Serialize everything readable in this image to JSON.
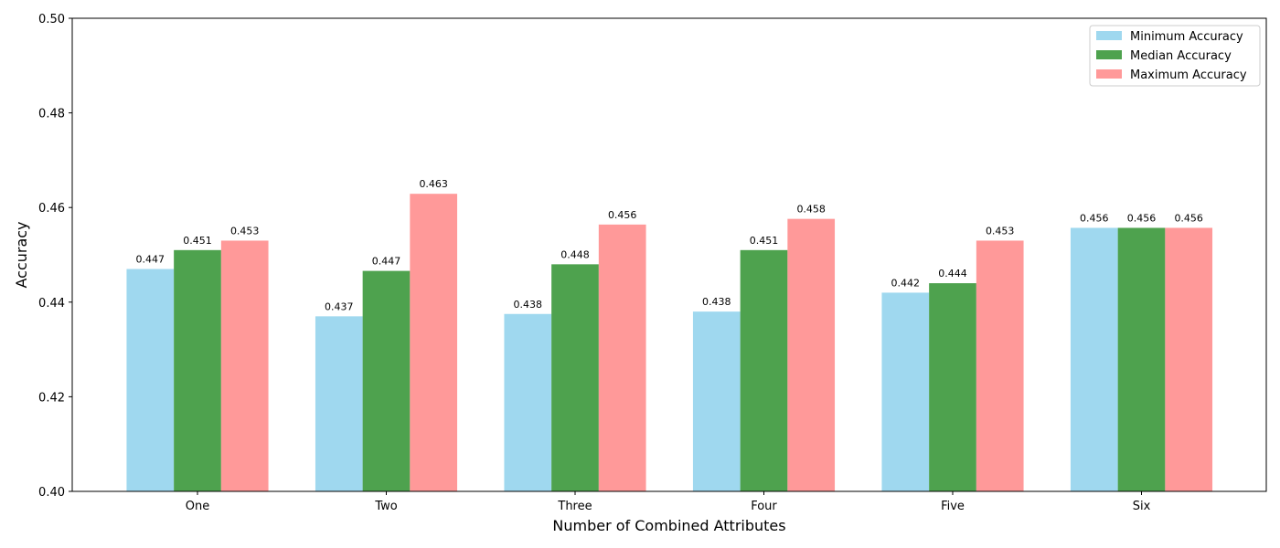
{
  "chart_data": {
    "type": "bar",
    "categories": [
      "One",
      "Two",
      "Three",
      "Four",
      "Five",
      "Six"
    ],
    "series": [
      {
        "name": "Minimum Accuracy",
        "color": "#87ceeb",
        "values": [
          0.447,
          0.437,
          0.4375,
          0.438,
          0.442,
          0.4557
        ]
      },
      {
        "name": "Median Accuracy",
        "color": "#228b22",
        "values": [
          0.451,
          0.4466,
          0.448,
          0.451,
          0.444,
          0.4557
        ]
      },
      {
        "name": "Maximum Accuracy",
        "color": "#ff7f7f",
        "values": [
          0.453,
          0.4629,
          0.4564,
          0.4576,
          0.453,
          0.4557
        ]
      }
    ],
    "data_labels": [
      [
        "0.447",
        "0.437",
        "0.438",
        "0.438",
        "0.442",
        "0.456"
      ],
      [
        "0.451",
        "0.447",
        "0.448",
        "0.451",
        "0.444",
        "0.456"
      ],
      [
        "0.453",
        "0.463",
        "0.456",
        "0.458",
        "0.453",
        "0.456"
      ]
    ],
    "xlabel": "Number of Combined Attributes",
    "ylabel": "Accuracy",
    "ylim": [
      0.4,
      0.5
    ],
    "yticks": [
      "0.40",
      "0.42",
      "0.44",
      "0.46",
      "0.48",
      "0.50"
    ],
    "grid": false,
    "legend_position": "top-right",
    "bar_opacity": 0.8
  }
}
